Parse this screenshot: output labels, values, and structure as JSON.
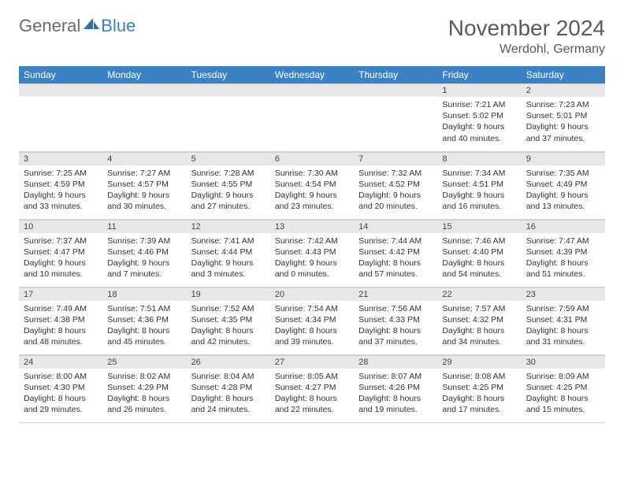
{
  "logo": {
    "text1": "General",
    "text2": "Blue"
  },
  "title": "November 2024",
  "location": "Werdohl, Germany",
  "colors": {
    "header_bg": "#3b82c4",
    "header_text": "#ffffff",
    "daynum_bg": "#e8e8e8",
    "text": "#333333",
    "logo_gray": "#6b6b6b",
    "logo_blue": "#3b7fc4",
    "border": "#d0d0d0"
  },
  "day_names": [
    "Sunday",
    "Monday",
    "Tuesday",
    "Wednesday",
    "Thursday",
    "Friday",
    "Saturday"
  ],
  "weeks": [
    [
      {
        "day": "",
        "sunrise": "",
        "sunset": "",
        "daylight": ""
      },
      {
        "day": "",
        "sunrise": "",
        "sunset": "",
        "daylight": ""
      },
      {
        "day": "",
        "sunrise": "",
        "sunset": "",
        "daylight": ""
      },
      {
        "day": "",
        "sunrise": "",
        "sunset": "",
        "daylight": ""
      },
      {
        "day": "",
        "sunrise": "",
        "sunset": "",
        "daylight": ""
      },
      {
        "day": "1",
        "sunrise": "Sunrise: 7:21 AM",
        "sunset": "Sunset: 5:02 PM",
        "daylight": "Daylight: 9 hours and 40 minutes."
      },
      {
        "day": "2",
        "sunrise": "Sunrise: 7:23 AM",
        "sunset": "Sunset: 5:01 PM",
        "daylight": "Daylight: 9 hours and 37 minutes."
      }
    ],
    [
      {
        "day": "3",
        "sunrise": "Sunrise: 7:25 AM",
        "sunset": "Sunset: 4:59 PM",
        "daylight": "Daylight: 9 hours and 33 minutes."
      },
      {
        "day": "4",
        "sunrise": "Sunrise: 7:27 AM",
        "sunset": "Sunset: 4:57 PM",
        "daylight": "Daylight: 9 hours and 30 minutes."
      },
      {
        "day": "5",
        "sunrise": "Sunrise: 7:28 AM",
        "sunset": "Sunset: 4:55 PM",
        "daylight": "Daylight: 9 hours and 27 minutes."
      },
      {
        "day": "6",
        "sunrise": "Sunrise: 7:30 AM",
        "sunset": "Sunset: 4:54 PM",
        "daylight": "Daylight: 9 hours and 23 minutes."
      },
      {
        "day": "7",
        "sunrise": "Sunrise: 7:32 AM",
        "sunset": "Sunset: 4:52 PM",
        "daylight": "Daylight: 9 hours and 20 minutes."
      },
      {
        "day": "8",
        "sunrise": "Sunrise: 7:34 AM",
        "sunset": "Sunset: 4:51 PM",
        "daylight": "Daylight: 9 hours and 16 minutes."
      },
      {
        "day": "9",
        "sunrise": "Sunrise: 7:35 AM",
        "sunset": "Sunset: 4:49 PM",
        "daylight": "Daylight: 9 hours and 13 minutes."
      }
    ],
    [
      {
        "day": "10",
        "sunrise": "Sunrise: 7:37 AM",
        "sunset": "Sunset: 4:47 PM",
        "daylight": "Daylight: 9 hours and 10 minutes."
      },
      {
        "day": "11",
        "sunrise": "Sunrise: 7:39 AM",
        "sunset": "Sunset: 4:46 PM",
        "daylight": "Daylight: 9 hours and 7 minutes."
      },
      {
        "day": "12",
        "sunrise": "Sunrise: 7:41 AM",
        "sunset": "Sunset: 4:44 PM",
        "daylight": "Daylight: 9 hours and 3 minutes."
      },
      {
        "day": "13",
        "sunrise": "Sunrise: 7:42 AM",
        "sunset": "Sunset: 4:43 PM",
        "daylight": "Daylight: 9 hours and 0 minutes."
      },
      {
        "day": "14",
        "sunrise": "Sunrise: 7:44 AM",
        "sunset": "Sunset: 4:42 PM",
        "daylight": "Daylight: 8 hours and 57 minutes."
      },
      {
        "day": "15",
        "sunrise": "Sunrise: 7:46 AM",
        "sunset": "Sunset: 4:40 PM",
        "daylight": "Daylight: 8 hours and 54 minutes."
      },
      {
        "day": "16",
        "sunrise": "Sunrise: 7:47 AM",
        "sunset": "Sunset: 4:39 PM",
        "daylight": "Daylight: 8 hours and 51 minutes."
      }
    ],
    [
      {
        "day": "17",
        "sunrise": "Sunrise: 7:49 AM",
        "sunset": "Sunset: 4:38 PM",
        "daylight": "Daylight: 8 hours and 48 minutes."
      },
      {
        "day": "18",
        "sunrise": "Sunrise: 7:51 AM",
        "sunset": "Sunset: 4:36 PM",
        "daylight": "Daylight: 8 hours and 45 minutes."
      },
      {
        "day": "19",
        "sunrise": "Sunrise: 7:52 AM",
        "sunset": "Sunset: 4:35 PM",
        "daylight": "Daylight: 8 hours and 42 minutes."
      },
      {
        "day": "20",
        "sunrise": "Sunrise: 7:54 AM",
        "sunset": "Sunset: 4:34 PM",
        "daylight": "Daylight: 8 hours and 39 minutes."
      },
      {
        "day": "21",
        "sunrise": "Sunrise: 7:56 AM",
        "sunset": "Sunset: 4:33 PM",
        "daylight": "Daylight: 8 hours and 37 minutes."
      },
      {
        "day": "22",
        "sunrise": "Sunrise: 7:57 AM",
        "sunset": "Sunset: 4:32 PM",
        "daylight": "Daylight: 8 hours and 34 minutes."
      },
      {
        "day": "23",
        "sunrise": "Sunrise: 7:59 AM",
        "sunset": "Sunset: 4:31 PM",
        "daylight": "Daylight: 8 hours and 31 minutes."
      }
    ],
    [
      {
        "day": "24",
        "sunrise": "Sunrise: 8:00 AM",
        "sunset": "Sunset: 4:30 PM",
        "daylight": "Daylight: 8 hours and 29 minutes."
      },
      {
        "day": "25",
        "sunrise": "Sunrise: 8:02 AM",
        "sunset": "Sunset: 4:29 PM",
        "daylight": "Daylight: 8 hours and 26 minutes."
      },
      {
        "day": "26",
        "sunrise": "Sunrise: 8:04 AM",
        "sunset": "Sunset: 4:28 PM",
        "daylight": "Daylight: 8 hours and 24 minutes."
      },
      {
        "day": "27",
        "sunrise": "Sunrise: 8:05 AM",
        "sunset": "Sunset: 4:27 PM",
        "daylight": "Daylight: 8 hours and 22 minutes."
      },
      {
        "day": "28",
        "sunrise": "Sunrise: 8:07 AM",
        "sunset": "Sunset: 4:26 PM",
        "daylight": "Daylight: 8 hours and 19 minutes."
      },
      {
        "day": "29",
        "sunrise": "Sunrise: 8:08 AM",
        "sunset": "Sunset: 4:25 PM",
        "daylight": "Daylight: 8 hours and 17 minutes."
      },
      {
        "day": "30",
        "sunrise": "Sunrise: 8:09 AM",
        "sunset": "Sunset: 4:25 PM",
        "daylight": "Daylight: 8 hours and 15 minutes."
      }
    ]
  ]
}
